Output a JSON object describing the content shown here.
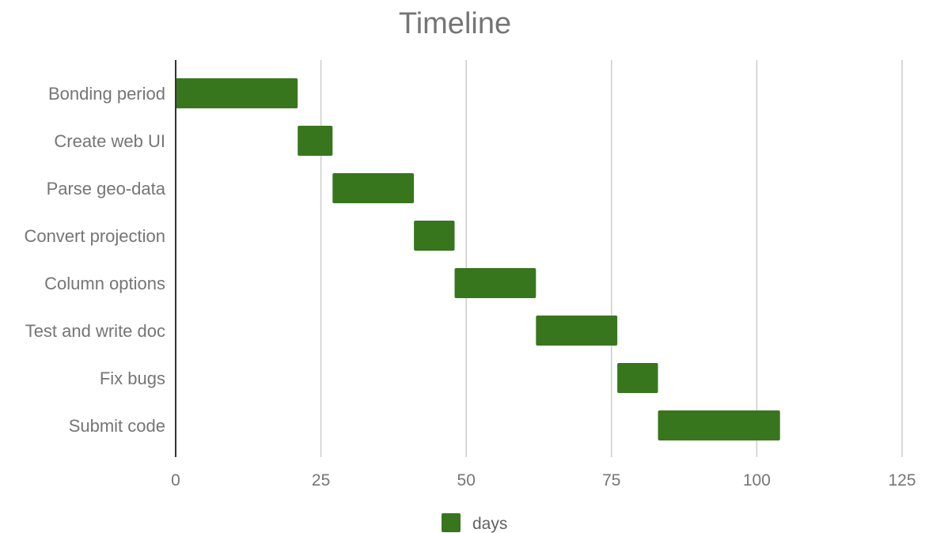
{
  "colors": {
    "bar": "#38761d",
    "grid": "#cccccc",
    "axis": "#333333",
    "text": "#757575"
  },
  "chart_data": {
    "type": "bar",
    "orientation": "horizontal",
    "stacked": true,
    "title": "Timeline",
    "xlabel": "",
    "ylabel": "",
    "xlim": [
      0,
      125
    ],
    "x_ticks": [
      0,
      25,
      50,
      75,
      100,
      125
    ],
    "x_tick_labels": [
      "0",
      "25",
      "50",
      "75",
      "100",
      "125"
    ],
    "grid": "vertical",
    "legend": {
      "position": "bottom",
      "entries": [
        "days"
      ]
    },
    "categories": [
      "Bonding period",
      "Create web UI",
      "Parse geo-data",
      "Convert projection",
      "Column options",
      "Test and write doc",
      "Fix bugs",
      "Submit code"
    ],
    "series": [
      {
        "name": "",
        "hidden": true,
        "values": [
          0,
          21,
          27,
          41,
          48,
          62,
          76,
          83
        ]
      },
      {
        "name": "days",
        "values": [
          21,
          6,
          14,
          7,
          14,
          14,
          7,
          21
        ]
      }
    ]
  }
}
